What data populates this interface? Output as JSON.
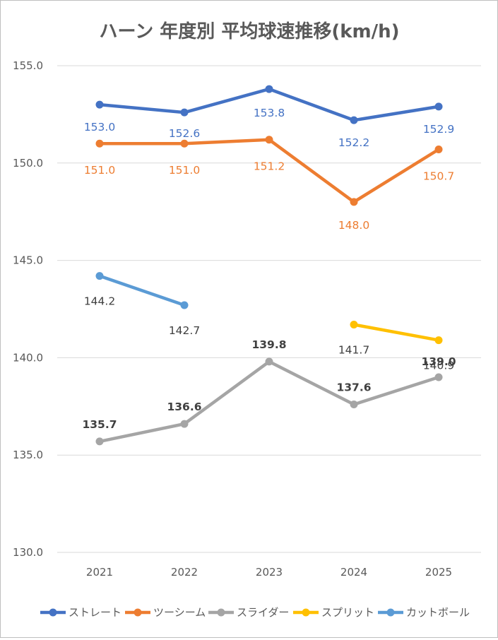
{
  "chart_data": {
    "type": "line",
    "title": "ハーン 年度別 平均球速推移(km/h)",
    "categories": [
      "2021",
      "2022",
      "2023",
      "2024",
      "2025"
    ],
    "yticks": [
      "130.0",
      "135.0",
      "140.0",
      "145.0",
      "150.0",
      "155.0"
    ],
    "ylim": [
      130,
      155
    ],
    "grid": true,
    "legend_position": "bottom",
    "series": [
      {
        "name": "ストレート",
        "color": "#4472c4",
        "values": [
          153.0,
          152.6,
          153.8,
          152.2,
          152.9
        ],
        "labels": [
          "153.0",
          "152.6",
          "153.8",
          "152.2",
          "152.9"
        ],
        "label_bold": false
      },
      {
        "name": "ツーシーム",
        "color": "#ed7d31",
        "values": [
          151.0,
          151.0,
          151.2,
          148.0,
          150.7
        ],
        "labels": [
          "151.0",
          "151.0",
          "151.2",
          "148.0",
          "150.7"
        ],
        "label_bold": false
      },
      {
        "name": "スライダー",
        "color": "#a5a5a5",
        "values": [
          135.7,
          136.6,
          139.8,
          137.6,
          139.0
        ],
        "labels": [
          "135.7",
          "136.6",
          "139.8",
          "137.6",
          "139.0"
        ],
        "label_bold": true
      },
      {
        "name": "スプリット",
        "color": "#ffc000",
        "values": [
          null,
          null,
          null,
          141.7,
          140.9
        ],
        "labels": [
          null,
          null,
          null,
          "141.7",
          "140.9"
        ],
        "label_bold": false
      },
      {
        "name": "カットボール",
        "color": "#5b9bd5",
        "values": [
          144.2,
          142.7,
          null,
          null,
          null
        ],
        "labels": [
          "144.2",
          "142.7",
          null,
          null,
          null
        ],
        "label_bold": false
      }
    ]
  }
}
